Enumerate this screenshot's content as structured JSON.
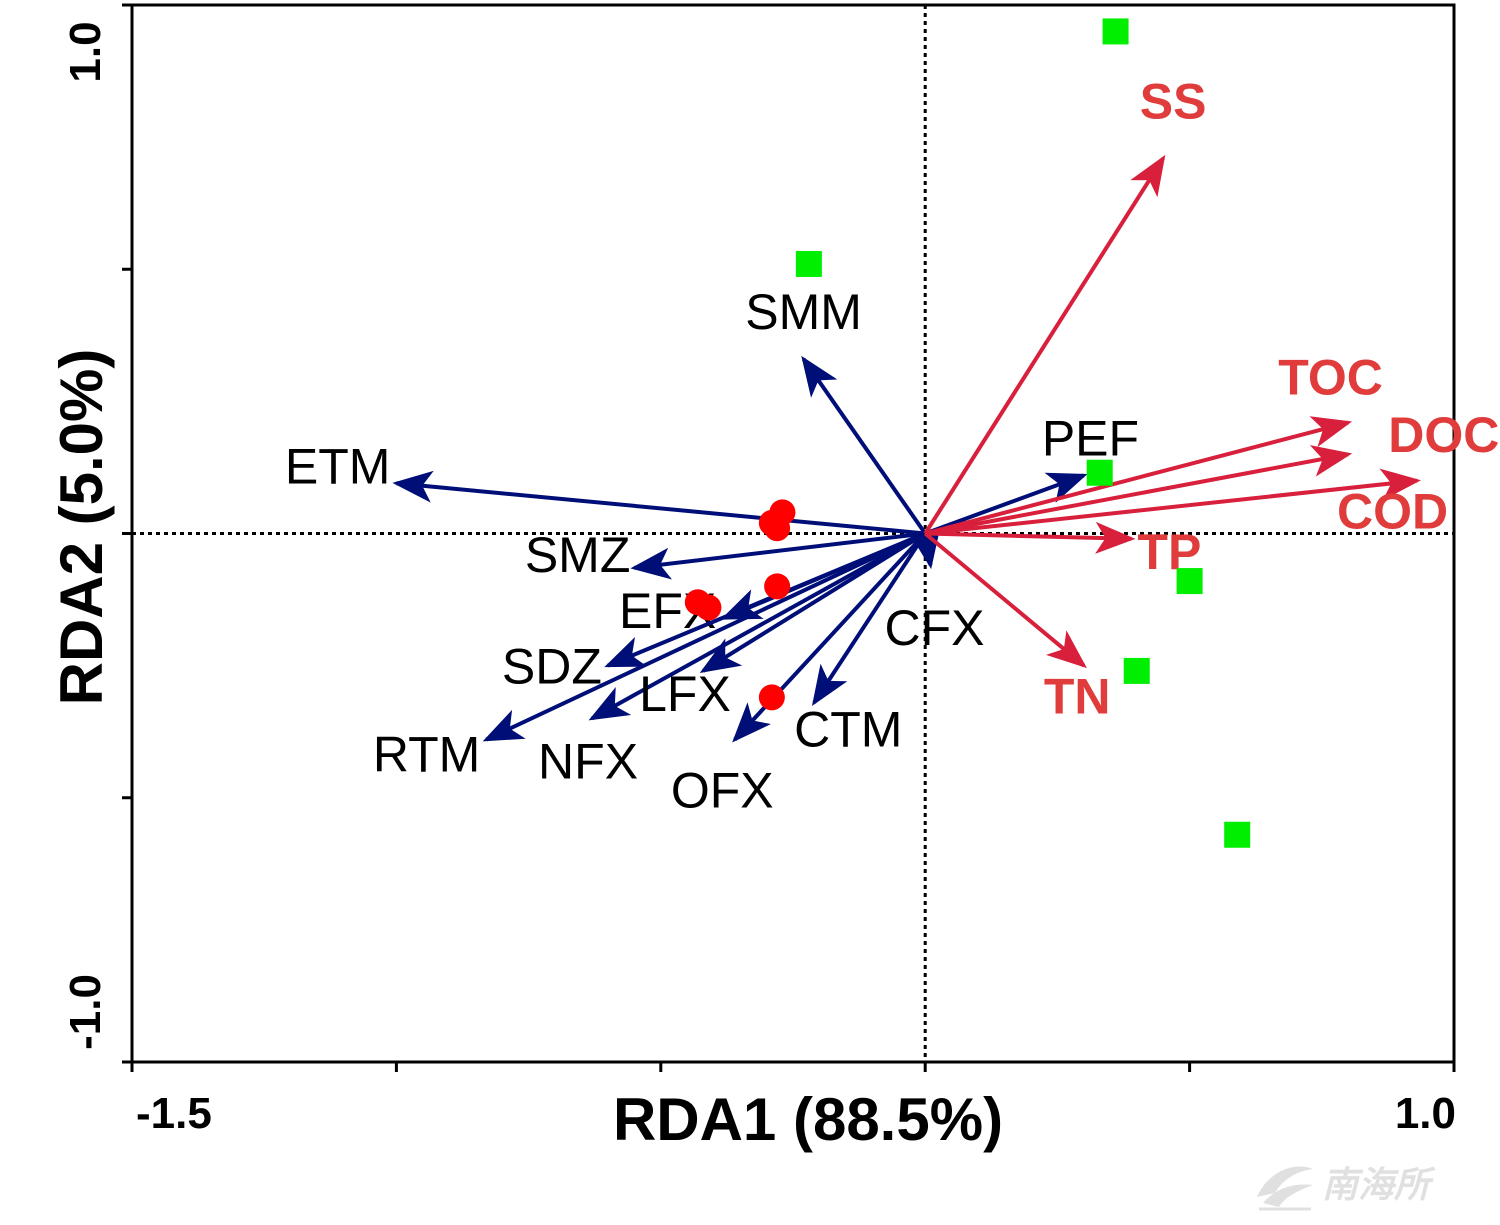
{
  "chart_data": {
    "type": "scatter",
    "subtype": "rda-biplot",
    "title": "",
    "xlabel": "RDA1 (88.5%)",
    "ylabel": "RDA2 (5.0%)",
    "xlim": [
      -1.5,
      1.0
    ],
    "ylim": [
      -1.0,
      1.0
    ],
    "x_tick_labels": [
      {
        "value": -1.5,
        "label": "-1.5"
      },
      {
        "value": 1.0,
        "label": "1.0"
      }
    ],
    "y_tick_labels": [
      {
        "value": 1.0,
        "label": "1.0"
      },
      {
        "value": -1.0,
        "label": "-1.0"
      }
    ],
    "x_ticks": [
      -1.5,
      -1.0,
      -0.5,
      0.0,
      0.5,
      1.0
    ],
    "y_ticks": [
      -1.0,
      -0.5,
      0.0,
      0.5,
      1.0
    ],
    "reference_lines": {
      "x": 0,
      "y": 0,
      "style": "dotted"
    },
    "grid": false,
    "colors": {
      "species_arrow": "#000e78",
      "env_arrow": "#d81f3b",
      "env_label": "#e03c3c",
      "site_circle": "#ff0000",
      "site_square": "#00ee00",
      "axis": "#000000"
    },
    "species_arrows": [
      {
        "name": "SMM",
        "x": -0.23,
        "y": 0.33
      },
      {
        "name": "ETM",
        "x": -1.0,
        "y": 0.095
      },
      {
        "name": "SMZ",
        "x": -0.55,
        "y": -0.065
      },
      {
        "name": "EFX",
        "x": -0.38,
        "y": -0.16
      },
      {
        "name": "SDZ",
        "x": -0.6,
        "y": -0.25
      },
      {
        "name": "RTM",
        "x": -0.83,
        "y": -0.39
      },
      {
        "name": "NFX",
        "x": -0.63,
        "y": -0.35
      },
      {
        "name": "LFX",
        "x": -0.42,
        "y": -0.26
      },
      {
        "name": "OFX",
        "x": -0.36,
        "y": -0.39
      },
      {
        "name": "CTM",
        "x": -0.21,
        "y": -0.32
      },
      {
        "name": "CFX",
        "x": 0.01,
        "y": -0.06
      },
      {
        "name": "PEF",
        "x": 0.3,
        "y": 0.11
      }
    ],
    "environment_arrows": [
      {
        "name": "SS",
        "x": 0.45,
        "y": 0.71
      },
      {
        "name": "TOC",
        "x": 0.8,
        "y": 0.21
      },
      {
        "name": "DOC",
        "x": 0.8,
        "y": 0.15
      },
      {
        "name": "COD",
        "x": 0.93,
        "y": 0.1
      },
      {
        "name": "TP",
        "x": 0.39,
        "y": -0.01
      },
      {
        "name": "TN",
        "x": 0.3,
        "y": -0.25
      }
    ],
    "sites": [
      {
        "group": "circle",
        "x": -0.27,
        "y": 0.04
      },
      {
        "group": "circle",
        "x": -0.29,
        "y": 0.02
      },
      {
        "group": "circle",
        "x": -0.28,
        "y": 0.01
      },
      {
        "group": "circle",
        "x": -0.28,
        "y": -0.1
      },
      {
        "group": "circle",
        "x": -0.43,
        "y": -0.13
      },
      {
        "group": "circle",
        "x": -0.41,
        "y": -0.14
      },
      {
        "group": "circle",
        "x": -0.29,
        "y": -0.31
      },
      {
        "group": "square",
        "x": -0.22,
        "y": 0.51
      },
      {
        "group": "square",
        "x": 0.36,
        "y": 0.95
      },
      {
        "group": "square",
        "x": 0.33,
        "y": 0.115
      },
      {
        "group": "square",
        "x": 0.5,
        "y": -0.09
      },
      {
        "group": "square",
        "x": 0.4,
        "y": -0.26
      },
      {
        "group": "square",
        "x": 0.59,
        "y": -0.57
      }
    ]
  },
  "watermark_text": "南海所"
}
